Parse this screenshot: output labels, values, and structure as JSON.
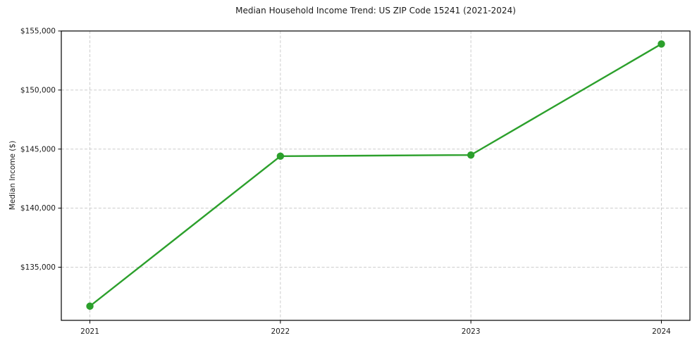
{
  "chart_data": {
    "type": "line",
    "title": "Median Household Income Trend: US ZIP Code 15241 (2021-2024)",
    "xlabel": "",
    "ylabel": "Median Income ($)",
    "x": [
      2021,
      2022,
      2023,
      2024
    ],
    "series": [
      {
        "name": "Median Household Income",
        "values": [
          131700,
          144400,
          144500,
          153900
        ]
      }
    ],
    "xticks": [
      {
        "v": 2021,
        "label": "2021"
      },
      {
        "v": 2022,
        "label": "2022"
      },
      {
        "v": 2023,
        "label": "2023"
      },
      {
        "v": 2024,
        "label": "2024"
      }
    ],
    "yticks": [
      {
        "v": 135000,
        "label": "$135,000"
      },
      {
        "v": 140000,
        "label": "$140,000"
      },
      {
        "v": 145000,
        "label": "$145,000"
      },
      {
        "v": 150000,
        "label": "$150,000"
      },
      {
        "v": 155000,
        "label": "$155,000"
      }
    ],
    "xlim": [
      2020.85,
      2024.15
    ],
    "ylim": [
      130500,
      155000
    ],
    "grid": "dashed, both axes",
    "legend": "none",
    "line_color": "#2ca02c",
    "marker": "circle",
    "marker_color": "#2ca02c",
    "grid_color": "#cccccc",
    "frame_color": "#000000",
    "background_color": "#ffffff"
  }
}
